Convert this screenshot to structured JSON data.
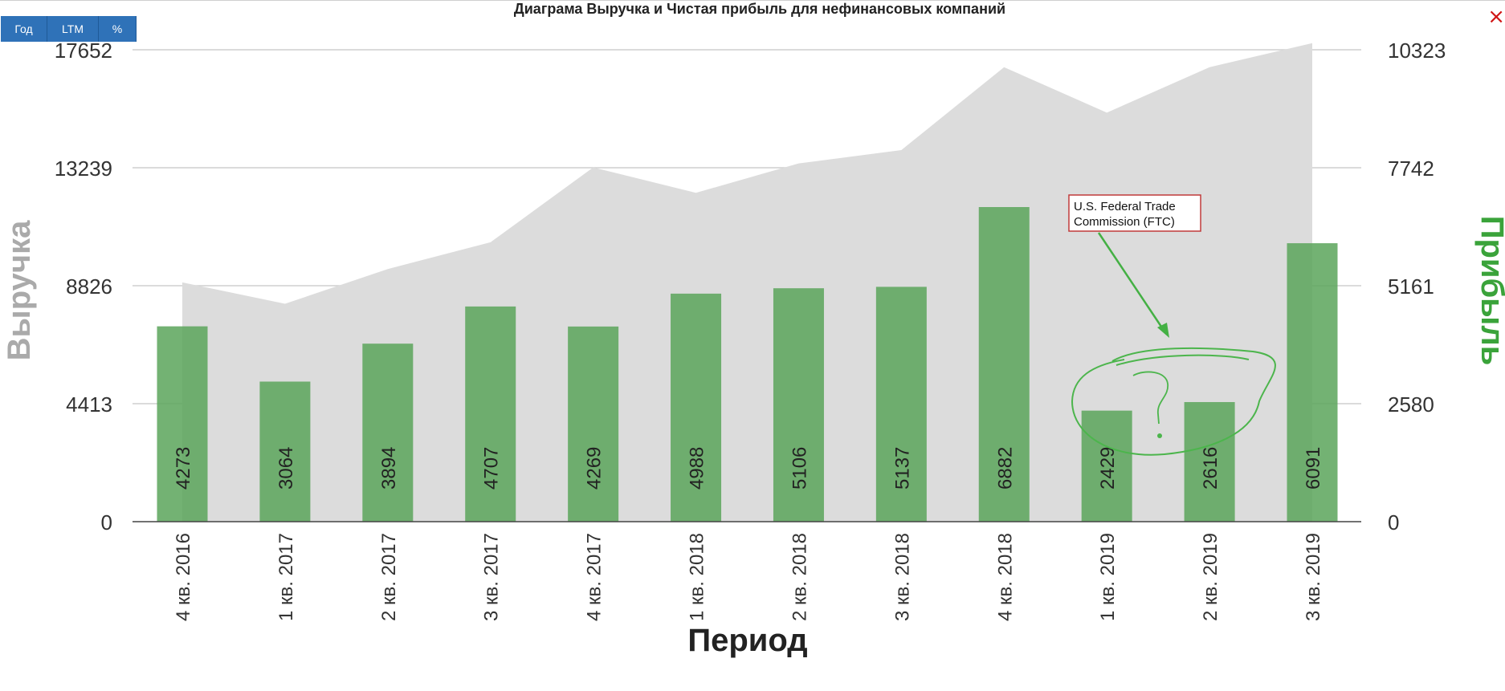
{
  "toolbar": {
    "year_label": "Год",
    "ltm_label": "LTM",
    "percent_label": "%"
  },
  "close_label": "×",
  "annotation": {
    "line1": "U.S. Federal Trade",
    "line2": "Commission (FTC)",
    "question_mark": "?"
  },
  "colors": {
    "revenue_area": "#dcdcdc",
    "profit_bars": "#5aa55a",
    "right_axis_title": "#3aa33a",
    "left_axis_title": "#aaaaaa",
    "button": "#2f72b8",
    "close": "#d01515"
  },
  "chart_data": {
    "type": "bar",
    "title": "Диаграма Выручка и Чистая прибыль для нефинансовых компаний",
    "xlabel": "Период",
    "ylabel_left": "Выручка",
    "ylabel_right": "Прибыль",
    "categories": [
      "4 кв. 2016",
      "1 кв. 2017",
      "2 кв. 2017",
      "3 кв. 2017",
      "4 кв. 2017",
      "1 кв. 2018",
      "2 кв. 2018",
      "3 кв. 2018",
      "4 кв. 2018",
      "1 кв. 2019",
      "2 кв. 2019",
      "3 кв. 2019"
    ],
    "left_ticks": [
      "0",
      "4413",
      "8826",
      "13239",
      "17652"
    ],
    "right_ticks": [
      "0",
      "2580",
      "5161",
      "7742",
      "10323"
    ],
    "ylim_left": [
      0,
      17652
    ],
    "ylim_right": [
      0,
      10323
    ],
    "grid": true,
    "series": [
      {
        "type": "area",
        "axis": "left",
        "values": [
          8950,
          8150,
          9450,
          10450,
          13250,
          12300,
          13400,
          13900,
          17000,
          15300,
          17000,
          17900
        ]
      },
      {
        "type": "bar",
        "axis": "right",
        "values": [
          4273,
          3064,
          3894,
          4707,
          4269,
          4988,
          5106,
          5137,
          6882,
          2429,
          2616,
          6091
        ]
      }
    ]
  }
}
